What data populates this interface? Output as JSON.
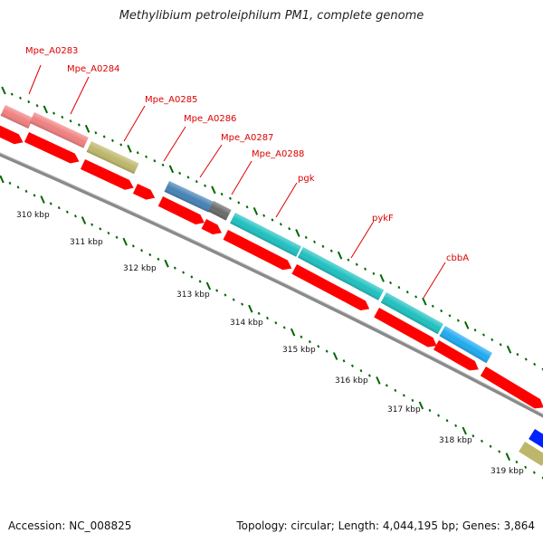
{
  "title": "Methylibium petroleiphilum PM1, complete genome",
  "accession": "Accession: NC_008825",
  "summary": "Topology: circular; Length: 4,044,195 bp; Genes: 3,864",
  "scale_labels": [
    "310 kbp",
    "311 kbp",
    "312 kbp",
    "313 kbp",
    "314 kbp",
    "315 kbp",
    "316 kbp",
    "317 kbp",
    "318 kbp",
    "319 kbp"
  ],
  "gene_labels": [
    "Mpe_A0283",
    "Mpe_A0284",
    "Mpe_A0285",
    "Mpe_A0286",
    "Mpe_A0287",
    "Mpe_A0288",
    "pgk",
    "pykF",
    "cbbA"
  ],
  "colors": {
    "cds": "#ff0000",
    "backbone": "#8a8a8a",
    "tick": "#006600",
    "label": "#dd0000",
    "salmon": "#f08080",
    "olive": "#bdb76b",
    "steelblue": "#4682b4",
    "dimgray": "#696969",
    "teal": "#20c0c0",
    "skyblue": "#20aaf0",
    "blue": "#0022ff"
  }
}
